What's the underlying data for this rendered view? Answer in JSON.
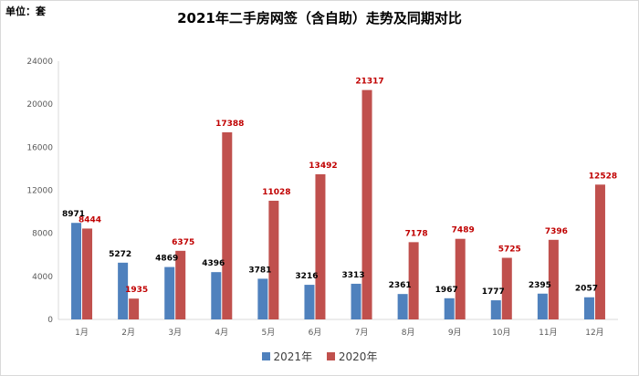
{
  "unit_label": "单位：套",
  "chart_data": {
    "type": "bar",
    "title": "2021年二手房网签（含自助）走势及同期对比",
    "categories": [
      "1月",
      "2月",
      "3月",
      "4月",
      "5月",
      "6月",
      "7月",
      "8月",
      "9月",
      "10月",
      "11月",
      "12月"
    ],
    "series": [
      {
        "name": "2021年",
        "color": "#4f81bd",
        "label_color": "#000000",
        "values": [
          8971,
          5272,
          4869,
          4396,
          3781,
          3216,
          3313,
          2361,
          1967,
          1777,
          2395,
          2057
        ]
      },
      {
        "name": "2020年",
        "color": "#c0504d",
        "label_color": "#c00000",
        "values": [
          8444,
          1935,
          6375,
          17388,
          11028,
          13492,
          21317,
          7178,
          7489,
          5725,
          7396,
          12528
        ]
      }
    ],
    "ylim": [
      0,
      24000
    ],
    "yticks": [
      0,
      4000,
      8000,
      12000,
      16000,
      20000,
      24000
    ],
    "xlabel": "",
    "ylabel": "",
    "grid": false,
    "legend_position": "bottom"
  }
}
